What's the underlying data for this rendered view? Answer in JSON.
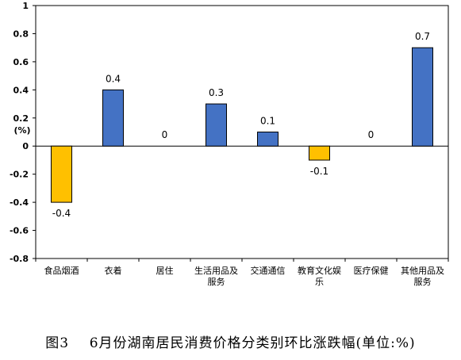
{
  "caption": "图3    6月份湖南居民消费价格分类别环比涨跌幅(单位:%)",
  "chart_data": {
    "type": "bar",
    "ylabel": "(%)",
    "ylim": [
      -0.8,
      1
    ],
    "yticks": [
      "1",
      "0.8",
      "0.6",
      "0.4",
      "0.2",
      "0",
      "-0.2",
      "-0.4",
      "-0.6",
      "-0.8"
    ],
    "categories": [
      [
        "食品烟酒"
      ],
      [
        "衣着"
      ],
      [
        "居住"
      ],
      [
        "生活用品及",
        "服务"
      ],
      [
        "交通通信"
      ],
      [
        "教育文化娱",
        "乐"
      ],
      [
        "医疗保健"
      ],
      [
        "其他用品及",
        "服务"
      ]
    ],
    "values": [
      -0.4,
      0.4,
      0,
      0.3,
      0.1,
      -0.1,
      0,
      0.7
    ],
    "data_labels": [
      "-0.4",
      "0.4",
      "0",
      "0.3",
      "0.1",
      "-0.1",
      "0",
      "0.7"
    ],
    "colors": {
      "positive": "#4472C4",
      "negative": "#FFC000",
      "border": "#000000"
    },
    "grid": false,
    "legend": "none"
  }
}
